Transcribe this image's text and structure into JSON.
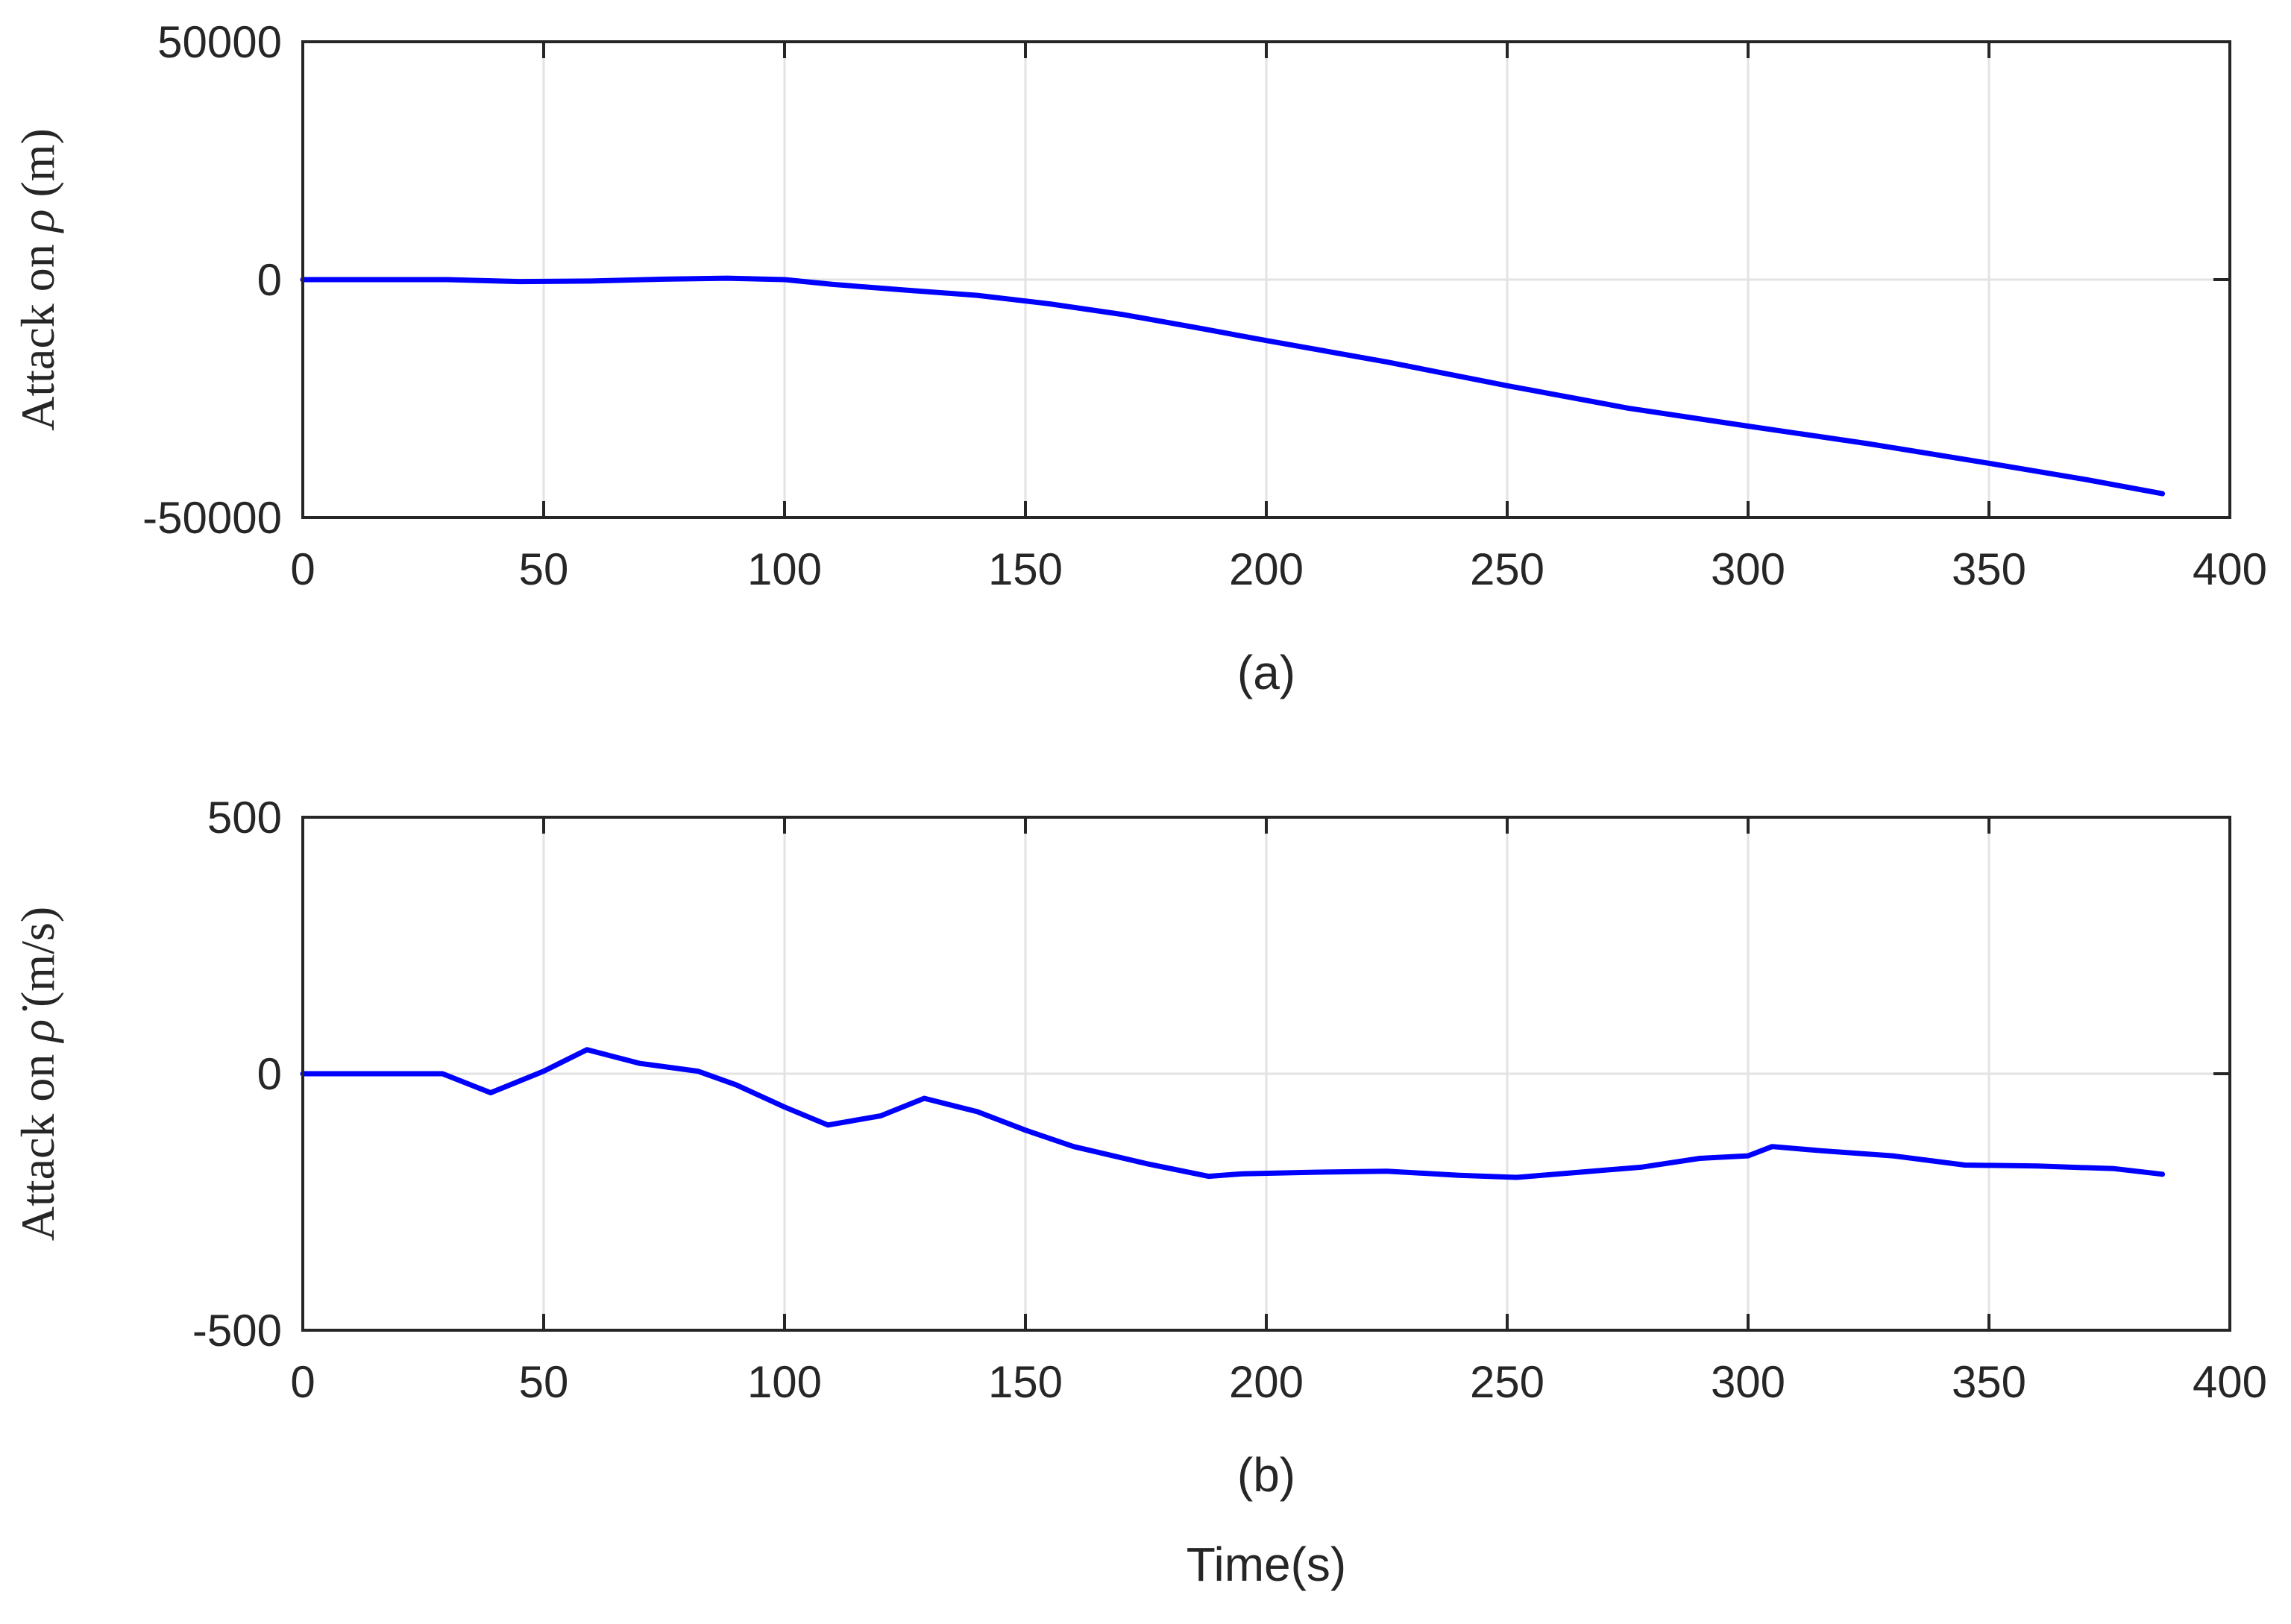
{
  "chart_data": [
    {
      "type": "line",
      "caption": "(a)",
      "xlabel": "",
      "ylabel": {
        "prefix": "Attack on ",
        "symbol": "ρ",
        "unit": " (m)"
      },
      "xlim": [
        0,
        400
      ],
      "ylim": [
        -50000,
        50000
      ],
      "xticks": [
        0,
        50,
        100,
        150,
        200,
        250,
        300,
        350,
        400
      ],
      "xtick_labels": [
        "0",
        "50",
        "100",
        "150",
        "200",
        "250",
        "300",
        "350",
        "400"
      ],
      "yticks": [
        -50000,
        0,
        50000
      ],
      "ytick_labels": [
        "-50000",
        "0",
        "50000"
      ],
      "grid": true,
      "color": "#0000ff",
      "series": [
        {
          "name": "attack-rho",
          "x": [
            0,
            30,
            45,
            60,
            75,
            88,
            100,
            110,
            125,
            140,
            155,
            170,
            185,
            200,
            225,
            250,
            275,
            300,
            325,
            350,
            370,
            386
          ],
          "y": [
            0,
            0,
            -400,
            -300,
            100,
            300,
            0,
            -1000,
            -2200,
            -3300,
            -5100,
            -7300,
            -10000,
            -12800,
            -17300,
            -22300,
            -27000,
            -30800,
            -34500,
            -38600,
            -42000,
            -45000
          ]
        }
      ]
    },
    {
      "type": "line",
      "caption": "(b)",
      "xlabel": "Time(s)",
      "ylabel": {
        "prefix": "Attack on ",
        "symbol": "ρ̇",
        "unit": " (m/s)"
      },
      "xlim": [
        0,
        400
      ],
      "ylim": [
        -500,
        500
      ],
      "xticks": [
        0,
        50,
        100,
        150,
        200,
        250,
        300,
        350,
        400
      ],
      "xtick_labels": [
        "0",
        "50",
        "100",
        "150",
        "200",
        "250",
        "300",
        "350",
        "400"
      ],
      "yticks": [
        -500,
        0,
        500
      ],
      "ytick_labels": [
        "-500",
        "0",
        "500"
      ],
      "grid": true,
      "color": "#0000ff",
      "series": [
        {
          "name": "attack-rho-dot",
          "x": [
            0,
            29,
            39,
            50,
            59,
            70,
            82,
            90,
            100,
            109,
            120,
            129,
            140,
            150,
            160,
            175,
            188,
            195,
            210,
            225,
            240,
            252,
            265,
            278,
            290,
            300,
            305,
            315,
            330,
            345,
            360,
            376,
            386
          ],
          "y": [
            0,
            0,
            -37,
            5,
            47,
            20,
            5,
            -22,
            -65,
            -100,
            -82,
            -48,
            -74,
            -110,
            -142,
            -175,
            -200,
            -195,
            -192,
            -190,
            -198,
            -202,
            -192,
            -182,
            -165,
            -160,
            -142,
            -150,
            -160,
            -178,
            -180,
            -185,
            -196
          ]
        }
      ]
    }
  ]
}
